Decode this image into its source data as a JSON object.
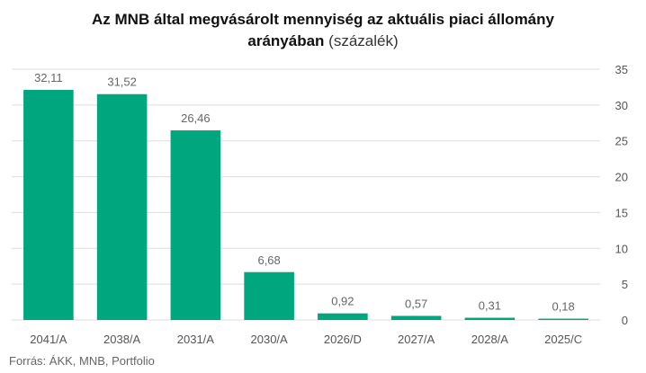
{
  "title": {
    "line1": "Az MNB által megvásárolt mennyiség az aktuális piaci állomány",
    "line2_bold": "arányában",
    "line2_light": "(százalék)"
  },
  "source": "Forrás: ÁKK, MNB, Portfolio",
  "chart_data": {
    "type": "bar",
    "categories": [
      "2041/A",
      "2038/A",
      "2031/A",
      "2030/A",
      "2026/D",
      "2027/A",
      "2028/A",
      "2025/C"
    ],
    "values": [
      32.11,
      31.52,
      26.46,
      6.68,
      0.92,
      0.57,
      0.31,
      0.18
    ],
    "data_labels": [
      "32,11",
      "31,52",
      "26,46",
      "6,68",
      "0,92",
      "0,57",
      "0,31",
      "0,18"
    ],
    "y_ticks": [
      0,
      5,
      10,
      15,
      20,
      25,
      30,
      35
    ],
    "ylim": [
      0,
      35
    ],
    "y_axis_side": "right",
    "grid": true,
    "bar_color": "#00a67e",
    "grid_color": "#dddddd"
  }
}
